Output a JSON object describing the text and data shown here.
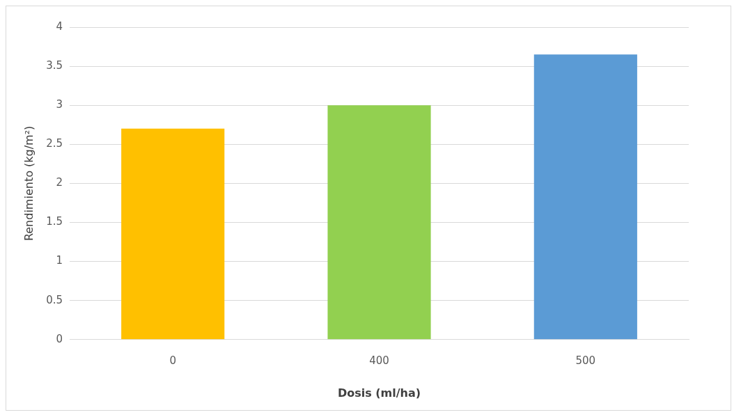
{
  "chart_data": {
    "type": "bar",
    "xlabel": "Dosis (ml/ha)",
    "ylabel": "Rendimiento (kg/m²)",
    "categories": [
      "0",
      "400",
      "500"
    ],
    "values": [
      2.7,
      3.0,
      3.65
    ],
    "colors": [
      "#ffc000",
      "#92d050",
      "#5b9bd5"
    ],
    "ylim": [
      0,
      4
    ],
    "yticks": [
      0,
      0.5,
      1,
      1.5,
      2,
      2.5,
      3,
      3.5,
      4
    ],
    "grid": true
  }
}
